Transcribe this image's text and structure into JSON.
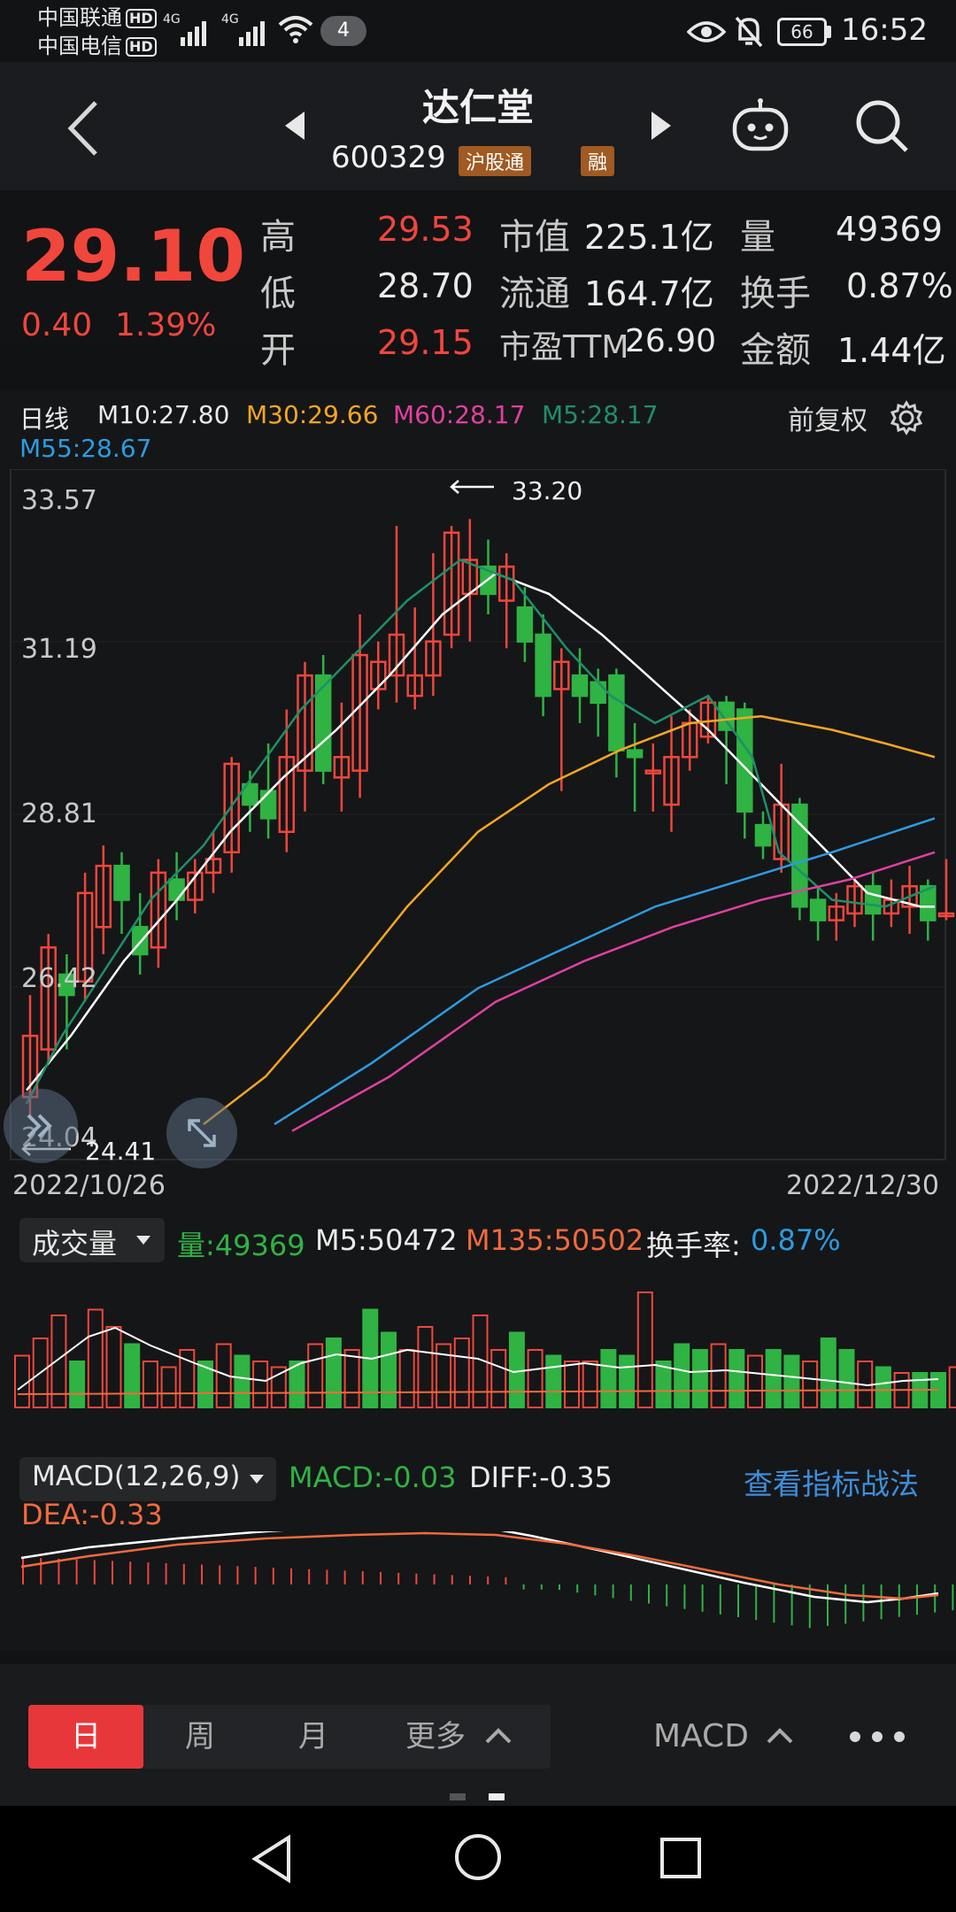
{
  "status": {
    "carrier1": "中国联通",
    "carrier2": "中国电信",
    "hd": "HD",
    "net": "4G",
    "notif_count": "4",
    "battery": "66",
    "time": "16:52"
  },
  "header": {
    "title": "达仁堂",
    "code": "600329",
    "tag1": "沪股通",
    "tag2": "融"
  },
  "quote": {
    "price": "29.10",
    "change": "0.40",
    "change_pct": "1.39%",
    "high_label": "高",
    "high": "29.53",
    "low_label": "低",
    "low": "28.70",
    "open_label": "开",
    "open": "29.15",
    "mcap_label": "市值",
    "mcap": "225.1亿",
    "float_label": "流通",
    "float": "164.7亿",
    "pe_label": "市盈TTM",
    "pe": "26.90",
    "vol_label": "量",
    "vol": "49369",
    "turn_label": "换手",
    "turn": "0.87%",
    "amt_label": "金额",
    "amt": "1.44亿"
  },
  "kline": {
    "period": "日线",
    "ma10": "M10:27.80",
    "ma30": "M30:29.66",
    "ma60": "M60:28.17",
    "ma5": "M5:28.17",
    "ma55": "M55:28.67",
    "adjust": "前复权",
    "y_labels": [
      "33.57",
      "31.19",
      "28.81",
      "26.42",
      "24.04"
    ],
    "high_mark": "33.20",
    "low_mark": "24.41",
    "date_start": "2022/10/26",
    "date_end": "2022/12/30"
  },
  "volume": {
    "selector": "成交量",
    "vol": "量:49369",
    "m5": "M5:50472",
    "m135": "M135:50502",
    "turn_label": "换手率:",
    "turn": "0.87%"
  },
  "macd": {
    "selector": "MACD(12,26,9)",
    "macd": "MACD:-0.03",
    "diff": "DIFF:-0.35",
    "dea": "DEA:-0.33",
    "link": "查看指标战法"
  },
  "tabs": {
    "day": "日",
    "week": "周",
    "month": "月",
    "more": "更多",
    "indicator": "MACD"
  },
  "colors": {
    "up": "#f1463b",
    "down": "#2fb343",
    "ma10": "#ffffff",
    "ma30": "#f5a623",
    "ma60": "#e040a0",
    "ma5": "#1e8f6a",
    "ma55": "#2d9be0",
    "accent": "#e8373a"
  }
}
